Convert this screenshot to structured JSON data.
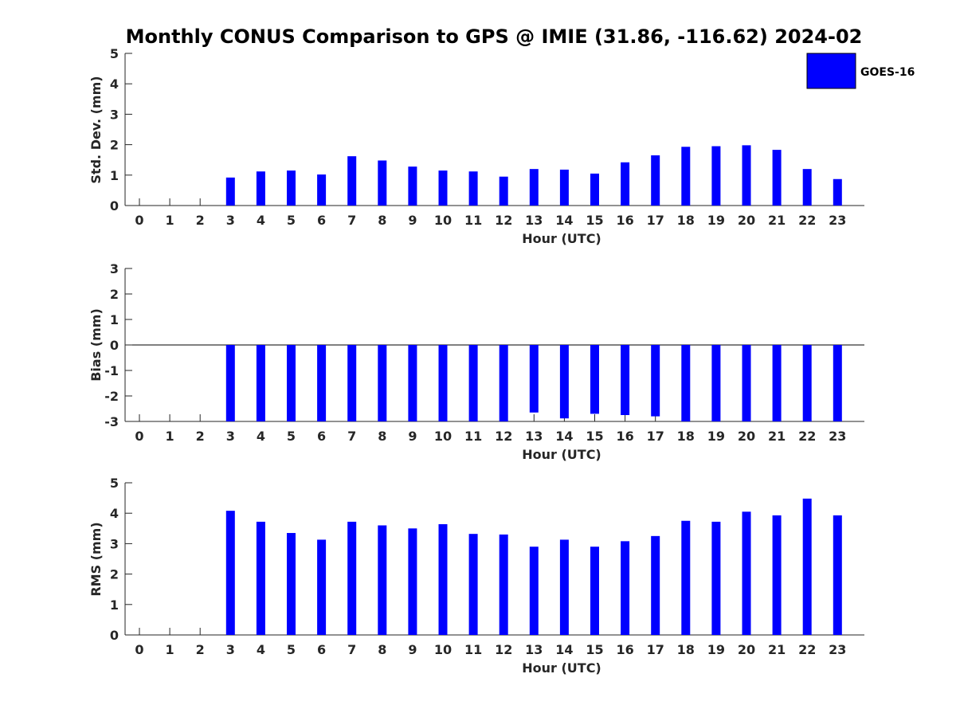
{
  "title": "Monthly CONUS Comparison to GPS @ IMIE (31.86, -116.62) 2024-02",
  "legend": {
    "label": "GOES-16",
    "color": "#0000ff"
  },
  "chart_data": [
    {
      "type": "bar",
      "ylabel": "Std. Dev. (mm)",
      "xlabel": "Hour (UTC)",
      "ylim": [
        0,
        5
      ],
      "yticks": [
        0,
        1,
        2,
        3,
        4,
        5
      ],
      "categories": [
        "0",
        "1",
        "2",
        "3",
        "4",
        "5",
        "6",
        "7",
        "8",
        "9",
        "10",
        "11",
        "12",
        "13",
        "14",
        "15",
        "16",
        "17",
        "18",
        "19",
        "20",
        "21",
        "22",
        "23"
      ],
      "series": [
        {
          "name": "GOES-16",
          "color": "#0000ff",
          "values": [
            null,
            null,
            null,
            0.92,
            1.12,
            1.15,
            1.02,
            1.62,
            1.48,
            1.28,
            1.15,
            1.12,
            0.95,
            1.2,
            1.18,
            1.05,
            1.42,
            1.65,
            1.93,
            1.95,
            1.98,
            1.83,
            1.2,
            0.87
          ]
        }
      ],
      "grid": false,
      "legend_position": "top-right"
    },
    {
      "type": "bar",
      "ylabel": "Bias (mm)",
      "xlabel": "Hour (UTC)",
      "ylim": [
        -3,
        3
      ],
      "yticks": [
        -3,
        -2,
        -1,
        0,
        1,
        2,
        3
      ],
      "categories": [
        "0",
        "1",
        "2",
        "3",
        "4",
        "5",
        "6",
        "7",
        "8",
        "9",
        "10",
        "11",
        "12",
        "13",
        "14",
        "15",
        "16",
        "17",
        "18",
        "19",
        "20",
        "21",
        "22",
        "23"
      ],
      "series": [
        {
          "name": "GOES-16",
          "color": "#0000ff",
          "values": [
            null,
            null,
            null,
            -3.0,
            -3.0,
            -3.0,
            -3.0,
            -3.0,
            -3.0,
            -3.0,
            -3.0,
            -3.0,
            -3.0,
            -2.65,
            -2.88,
            -2.7,
            -2.75,
            -2.8,
            -3.0,
            -3.0,
            -3.0,
            -3.0,
            -3.0,
            -3.0
          ]
        }
      ],
      "grid": false
    },
    {
      "type": "bar",
      "ylabel": "RMS (mm)",
      "xlabel": "Hour (UTC)",
      "ylim": [
        0,
        5
      ],
      "yticks": [
        0,
        1,
        2,
        3,
        4,
        5
      ],
      "categories": [
        "0",
        "1",
        "2",
        "3",
        "4",
        "5",
        "6",
        "7",
        "8",
        "9",
        "10",
        "11",
        "12",
        "13",
        "14",
        "15",
        "16",
        "17",
        "18",
        "19",
        "20",
        "21",
        "22",
        "23"
      ],
      "series": [
        {
          "name": "GOES-16",
          "color": "#0000ff",
          "values": [
            null,
            null,
            null,
            4.08,
            3.72,
            3.35,
            3.13,
            3.72,
            3.6,
            3.5,
            3.64,
            3.32,
            3.3,
            2.9,
            3.13,
            2.9,
            3.08,
            3.25,
            3.75,
            3.72,
            4.05,
            3.93,
            4.48,
            3.93
          ]
        }
      ],
      "grid": false
    }
  ]
}
